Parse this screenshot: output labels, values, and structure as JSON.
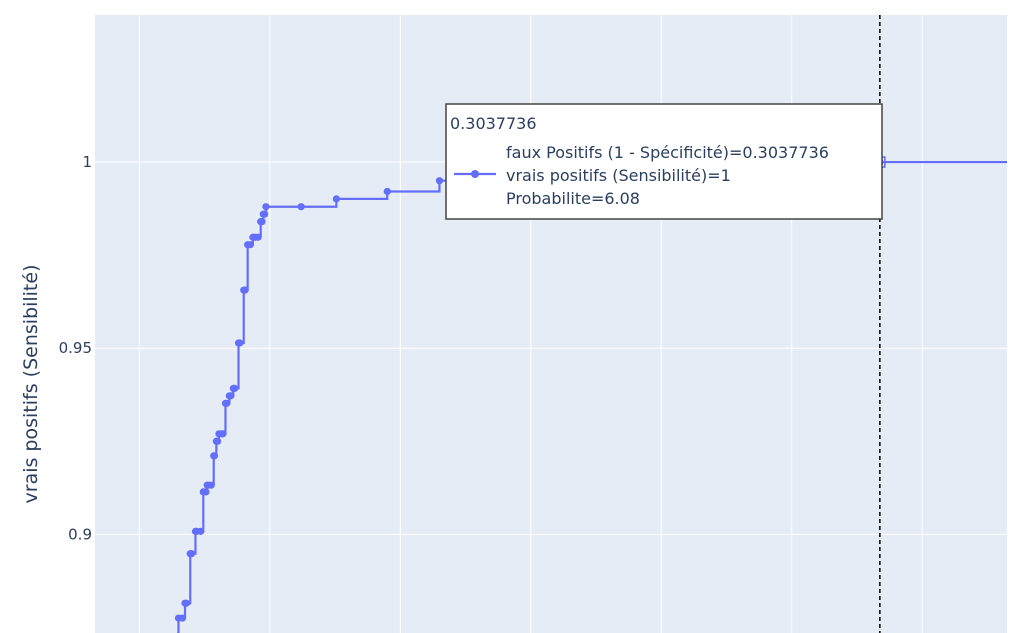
{
  "chart_data": {
    "type": "line",
    "mode": "lines+markers",
    "line_shape": "step",
    "ylabel": "vrais positifs (Sensibilité)",
    "xlabel": "",
    "title": "",
    "y_ticks": [
      0.9,
      0.95,
      1
    ],
    "y_tick_labels": [
      "0.9",
      "0.95",
      "1"
    ],
    "ylim": [
      0.8735,
      1.0395
    ],
    "xlim": [
      0.003,
      0.3525
    ],
    "grid": true,
    "colors": {
      "line": "#636efa",
      "plot_bg": "#e5ecf6",
      "grid": "#ffffff",
      "text": "#2a3f5f",
      "spike": "#000000"
    },
    "series": [
      {
        "x": [
          0.0345,
          0.035,
          0.0365,
          0.0375,
          0.038,
          0.0395,
          0.04,
          0.0415,
          0.042,
          0.0435,
          0.0445,
          0.0455,
          0.046,
          0.0465,
          0.0475,
          0.0485,
          0.0488,
          0.0495,
          0.05,
          0.0505,
          0.0515,
          0.052,
          0.053,
          0.0535,
          0.0545,
          0.055,
          0.056,
          0.0565,
          0.058,
          0.0585,
          0.06,
          0.0605,
          0.0615,
          0.0625,
          0.0635,
          0.0645,
          0.0655,
          0.0665,
          0.067,
          0.0675,
          0.068,
          0.0685,
          0.082,
          0.0955,
          0.115,
          0.135,
          0.155,
          0.175,
          0.195,
          0.215,
          0.235,
          0.255,
          0.275,
          0.2955,
          0.3037736,
          0.3525
        ],
        "y": [
          0.8735,
          0.8775,
          0.8775,
          0.8815,
          0.8815,
          0.8948,
          0.8948,
          0.9008,
          0.9008,
          0.9008,
          0.9114,
          0.9114,
          0.9132,
          0.9132,
          0.9132,
          0.9211,
          0.9211,
          0.925,
          0.925,
          0.927,
          0.927,
          0.927,
          0.9352,
          0.9352,
          0.9372,
          0.9372,
          0.9392,
          0.9392,
          0.9514,
          0.9514,
          0.9656,
          0.9656,
          0.9778,
          0.9778,
          0.9798,
          0.9798,
          0.9798,
          0.984,
          0.984,
          0.986,
          0.986,
          0.988,
          0.988,
          0.9901,
          0.9921,
          0.995,
          0.9965,
          0.9975,
          0.9982,
          0.9987,
          0.9991,
          0.9994,
          0.9996,
          0.9998,
          1,
          1
        ]
      }
    ],
    "hover": {
      "header": "0.3037736",
      "lines": [
        "faux Positifs (1 - Spécificité)=0.3037736",
        "vrais positifs (Sensibilité)=1",
        "Probabilite=6.08"
      ],
      "x": 0.3037736,
      "y": 1
    }
  }
}
